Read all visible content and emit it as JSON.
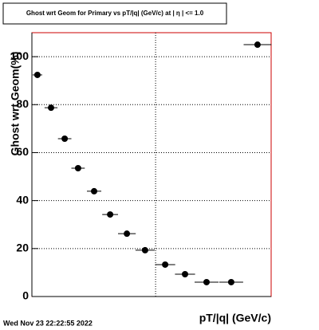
{
  "chart_data": {
    "type": "scatter",
    "title": "Ghost wrt Geom for Primary vs pT/|q| (GeV/c) at | η | <= 1.0",
    "x_label": "pT/|q| (GeV/c)",
    "y_label": "Ghost wrt Geom(%)",
    "footer": "Wed Nov 23 22:22:55 2022",
    "series": [
      {
        "color": "#000000",
        "x": [
          0.23,
          0.8,
          1.37,
          1.93,
          2.6,
          3.27,
          3.97,
          4.73,
          5.57,
          6.4,
          7.3,
          8.33,
          9.43
        ],
        "xerr": [
          0.2,
          0.27,
          0.28,
          0.28,
          0.3,
          0.33,
          0.37,
          0.4,
          0.42,
          0.42,
          0.5,
          0.5,
          0.58
        ],
        "values": [
          92.4,
          78.7,
          65.8,
          53.5,
          43.9,
          34.2,
          26.2,
          19.3,
          13.3,
          9.3,
          6.0,
          6.0,
          105
        ]
      }
    ],
    "xlim": [
      0,
      10
    ],
    "xgrid": [
      5.17
    ],
    "ylim": [
      0,
      110
    ],
    "yticks": [
      0,
      20,
      40,
      60,
      80,
      100
    ],
    "grid": true,
    "frame_color": "#cc0000"
  }
}
